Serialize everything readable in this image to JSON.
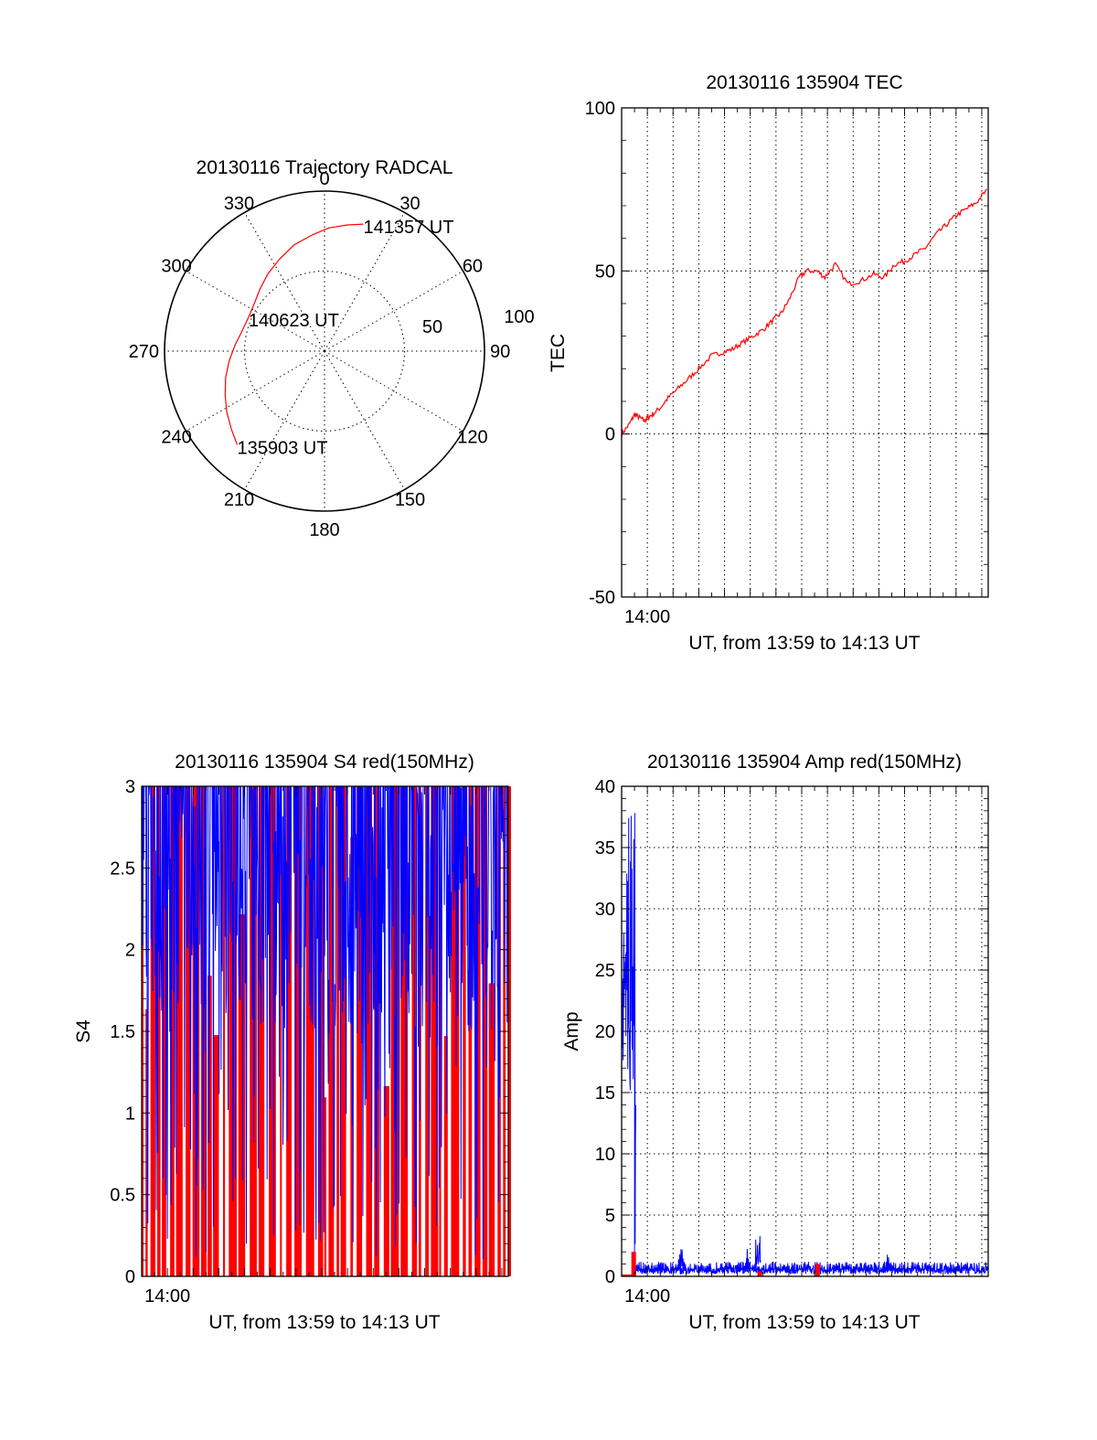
{
  "colors": {
    "red": "#ff0000",
    "blue": "#0000ff",
    "axes": "#000000",
    "background": "#ffffff"
  },
  "chart_data": [
    {
      "type": "polar",
      "title": "20130116 Trajectory RADCAL",
      "azimuth_labels": [
        {
          "deg": 0,
          "text": "0"
        },
        {
          "deg": 30,
          "text": "30"
        },
        {
          "deg": 60,
          "text": "60"
        },
        {
          "deg": 90,
          "text": "90"
        },
        {
          "deg": 120,
          "text": "120"
        },
        {
          "deg": 150,
          "text": "150"
        },
        {
          "deg": 180,
          "text": "180"
        },
        {
          "deg": 210,
          "text": "210"
        },
        {
          "deg": 240,
          "text": "240"
        },
        {
          "deg": 270,
          "text": "270"
        },
        {
          "deg": 300,
          "text": "300"
        },
        {
          "deg": 330,
          "text": "330"
        }
      ],
      "radial_labels": [
        {
          "r": 50,
          "text": "50"
        },
        {
          "r": 100,
          "text": "100"
        }
      ],
      "rmax": 100,
      "series": [
        {
          "color": "red",
          "points": [
            {
              "az": 223,
              "r": 80
            },
            {
              "az": 230,
              "r": 76
            },
            {
              "az": 238,
              "r": 72
            },
            {
              "az": 246,
              "r": 68
            },
            {
              "az": 255,
              "r": 64
            },
            {
              "az": 264,
              "r": 60
            },
            {
              "az": 274,
              "r": 56
            },
            {
              "az": 284,
              "r": 53
            },
            {
              "az": 294,
              "r": 52
            },
            {
              "az": 304,
              "r": 53
            },
            {
              "az": 314,
              "r": 56
            },
            {
              "az": 324,
              "r": 60
            },
            {
              "az": 334,
              "r": 64
            },
            {
              "az": 344,
              "r": 69
            },
            {
              "az": 354,
              "r": 73
            },
            {
              "az": 362,
              "r": 77
            },
            {
              "az": 370,
              "r": 80
            },
            {
              "az": 377,
              "r": 83
            }
          ]
        }
      ],
      "annotations": [
        {
          "text": "141357 UT",
          "az": 377,
          "r": 83
        },
        {
          "text": "140623 UT",
          "az": 294,
          "r": 52
        },
        {
          "text": "135903 UT",
          "az": 223,
          "r": 80
        }
      ]
    },
    {
      "type": "line",
      "title": "20130116 135904 TEC",
      "xlabel": "UT, from 13:59 to 14:13 UT",
      "ylabel": "TEC",
      "xlim": [
        0,
        14.25
      ],
      "ylim": [
        -50,
        100
      ],
      "yticks": [
        -50,
        0,
        50,
        100
      ],
      "xticks": [
        {
          "x": 1,
          "label": "14:00"
        }
      ],
      "xgrid": [
        1,
        2,
        3,
        4,
        5,
        6,
        7,
        8,
        9,
        10,
        11,
        12,
        13,
        14
      ],
      "ygrid": [
        0,
        50
      ],
      "series": [
        {
          "color": "red",
          "x": [
            0,
            0.3,
            0.5,
            0.7,
            0.9,
            1.0,
            1.2,
            1.5,
            1.8,
            2.2,
            2.6,
            3.0,
            3.5,
            3.9,
            4.3,
            4.7,
            5.1,
            5.5,
            5.9,
            6.2,
            6.5,
            6.9,
            7.2,
            7.6,
            7.9,
            8.3,
            8.8,
            9.3,
            9.8,
            10.2,
            10.6,
            11.0,
            11.4,
            11.8,
            12.2,
            12.6,
            13.0,
            13.4,
            13.8,
            14.2
          ],
          "y": [
            0,
            3,
            6,
            5,
            4,
            5,
            6,
            8,
            11,
            14,
            17,
            20,
            24,
            25,
            26,
            28,
            30,
            32,
            35,
            37,
            41,
            48,
            50,
            50,
            48,
            52,
            46,
            47,
            49,
            48,
            52,
            53,
            55,
            57,
            61,
            64,
            67,
            69,
            71,
            75
          ]
        }
      ]
    },
    {
      "type": "line",
      "title": "20130116 135904 S4 red(150MHz)",
      "xlabel": "UT, from 13:59 to 14:13 UT",
      "ylabel": "S4",
      "xlim": [
        0,
        14.25
      ],
      "ylim": [
        0,
        3
      ],
      "yticks": [
        0,
        0.5,
        1,
        1.5,
        2,
        2.5,
        3
      ],
      "ytick_labels": [
        "0",
        "0.5",
        "1",
        "1.5",
        "2",
        "2.5",
        "3"
      ],
      "xticks": [
        {
          "x": 1,
          "label": "14:00"
        }
      ],
      "series": [
        {
          "color": "red",
          "style": "dense",
          "min": 0,
          "max": 3
        },
        {
          "color": "blue",
          "style": "dense",
          "min": 0.1,
          "max": 3
        }
      ]
    },
    {
      "type": "line",
      "title": "20130116 135904 Amp red(150MHz)",
      "xlabel": "UT, from 13:59 to 14:13 UT",
      "ylabel": "Amp",
      "xlim": [
        0,
        14.25
      ],
      "ylim": [
        0,
        40
      ],
      "yticks": [
        0,
        5,
        10,
        15,
        20,
        25,
        30,
        35,
        40
      ],
      "xticks": [
        {
          "x": 1,
          "label": "14:00"
        }
      ],
      "xgrid": [
        1,
        2,
        3,
        4,
        5,
        6,
        7,
        8,
        9,
        10,
        11,
        12,
        13,
        14
      ],
      "ygrid": [
        5,
        10,
        15,
        20,
        25,
        30,
        35
      ],
      "series": [
        {
          "color": "blue",
          "style": "spiky",
          "segments": [
            {
              "x0": 0.0,
              "x1": 0.5,
              "min": 15,
              "max": 38
            },
            {
              "x0": 0.5,
              "x1": 0.55,
              "min": 0,
              "max": 38
            },
            {
              "x0": 0.55,
              "x1": 14.25,
              "min": 0.2,
              "max": 1.2
            },
            {
              "x0": 2.2,
              "x1": 2.4,
              "min": 0.5,
              "max": 2.5
            },
            {
              "x0": 4.8,
              "x1": 5.0,
              "min": 0.5,
              "max": 2.5
            },
            {
              "x0": 5.2,
              "x1": 5.4,
              "min": 0.5,
              "max": 3.5
            },
            {
              "x0": 10.2,
              "x1": 10.4,
              "min": 0.5,
              "max": 1.8
            }
          ]
        },
        {
          "color": "red",
          "style": "marks",
          "points": [
            {
              "x": 0.45,
              "y": 2
            },
            {
              "x": 5.35,
              "y": 0.4
            },
            {
              "x": 7.6,
              "y": 1.0
            }
          ]
        }
      ]
    }
  ]
}
